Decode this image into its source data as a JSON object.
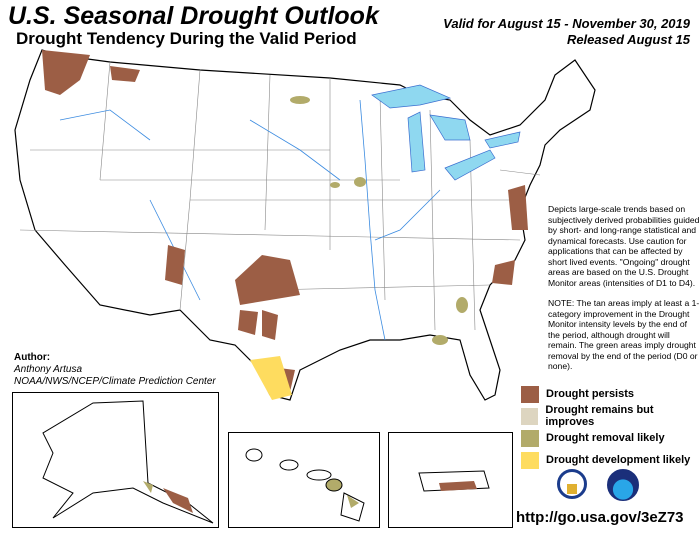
{
  "header": {
    "title": "U.S. Seasonal Drought Outlook",
    "subtitle": "Drought Tendency During the Valid Period",
    "valid": "Valid for August 15 - November 30, 2019",
    "released": "Released August 15"
  },
  "description": {
    "para1": "Depicts large-scale trends based on subjectively derived probabilities guided by short- and long-range statistical and dynamical forecasts. Use caution for applications that can be affected by short lived events. \"Ongoing\" drought areas are based on the U.S. Drought Monitor areas (intensities of D1 to D4).",
    "para2": "NOTE: The tan areas imply at least a 1-category improvement in the Drought Monitor intensity levels by the end of the period, although drought will remain. The green areas imply drought removal by the end of the period (D0 or none)."
  },
  "author": {
    "label": "Author:",
    "name": "Anthony Artusa",
    "org": "NOAA/NWS/NCEP/Climate Prediction Center"
  },
  "legend": [
    {
      "label": "Drought persists",
      "color": "#9c5e45"
    },
    {
      "label": "Drought remains but improves",
      "color": "#ddd5c0"
    },
    {
      "label": "Drought removal likely",
      "color": "#b2ab6a"
    },
    {
      "label": "Drought development likely",
      "color": "#fedc5f"
    }
  ],
  "logos": [
    "doc-seal-icon",
    "noaa-logo-icon"
  ],
  "url": "http://go.usa.gov/3eZ73"
}
